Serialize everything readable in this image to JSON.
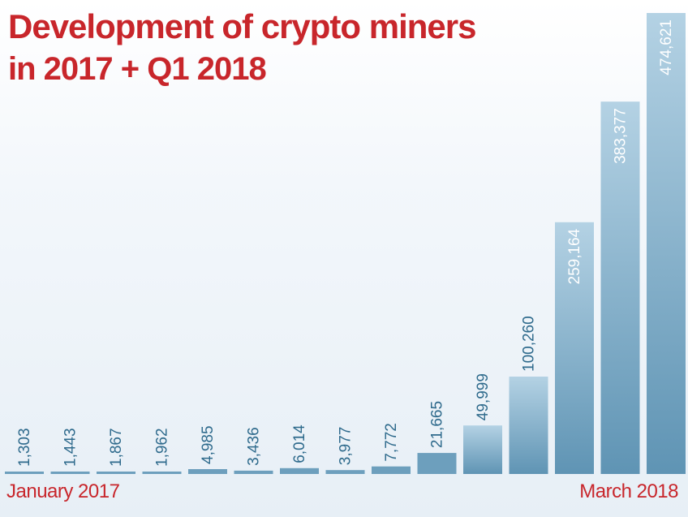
{
  "chart_data": {
    "type": "bar",
    "title": "Development of crypto miners",
    "subtitle": "in 2017 + Q1 2018",
    "x_start_label": "January 2017",
    "x_end_label": "March 2018",
    "value_labels": [
      "1,303",
      "1,443",
      "1,867",
      "1,962",
      "4,985",
      "3,436",
      "6,014",
      "3,977",
      "7,772",
      "21,665",
      "49,999",
      "100,260",
      "259,164",
      "383,377",
      "474,621"
    ],
    "values": [
      1303,
      1443,
      1867,
      1962,
      4985,
      3436,
      6014,
      3977,
      7772,
      21665,
      49999,
      100260,
      259164,
      383377,
      474621
    ],
    "ylim": [
      0,
      474621
    ],
    "grid": false,
    "legend": "none",
    "colors": {
      "bar_top": "#b4d2e4",
      "bar_bottom": "#5f94b4",
      "bar_small": "#6d9fbd",
      "label_dark": "#2e6a8c",
      "label_light": "#ffffff",
      "title": "#c8262b"
    }
  }
}
